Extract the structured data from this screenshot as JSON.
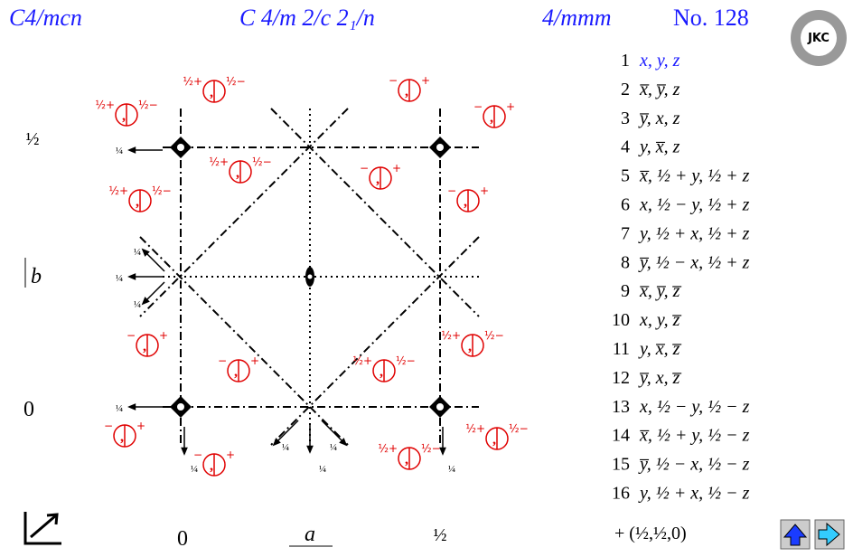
{
  "header": {
    "symbol": "C4/mcn",
    "full_symbol": "C 4/m 2/c 2₁/n",
    "point_group": "4/mmm",
    "number": "No. 128",
    "logo": "JKC"
  },
  "positions": [
    {
      "n": "1",
      "coords": "x, y, z"
    },
    {
      "n": "2",
      "coords": "x̅, y̅, z"
    },
    {
      "n": "3",
      "coords": "y̅, x, z"
    },
    {
      "n": "4",
      "coords": "y, x̅, z"
    },
    {
      "n": "5",
      "coords": "x̅, ½ + y, ½ + z"
    },
    {
      "n": "6",
      "coords": "x, ½ − y, ½ + z"
    },
    {
      "n": "7",
      "coords": "y, ½ + x, ½ + z"
    },
    {
      "n": "8",
      "coords": "y̅, ½ − x, ½ + z"
    },
    {
      "n": "9",
      "coords": "x̅, y̅, z̅"
    },
    {
      "n": "10",
      "coords": "x, y, z̅"
    },
    {
      "n": "11",
      "coords": "y, x̅, z̅"
    },
    {
      "n": "12",
      "coords": "y̅, x, z̅"
    },
    {
      "n": "13",
      "coords": "x, ½ − y, ½ − z"
    },
    {
      "n": "14",
      "coords": "x̅, ½ + y, ½ − z"
    },
    {
      "n": "15",
      "coords": "y̅, ½ − x, ½ − z"
    },
    {
      "n": "16",
      "coords": "y, ½ + x, ½ − z"
    }
  ],
  "centering": "+ (½,½,0)",
  "axes": {
    "y_half": "½",
    "b": "b",
    "y_zero": "0",
    "x_zero": "0",
    "a": "a",
    "x_half": "½"
  },
  "symbols": [
    {
      "left": "½+",
      "right": "½−"
    },
    {
      "left": "−",
      "right": "+"
    },
    {
      "left": "½+",
      "right": "½−"
    },
    {
      "left": "−",
      "right": "+"
    },
    {
      "left": "½+",
      "right": "½−"
    },
    {
      "left": "−",
      "right": "+"
    },
    {
      "left": "½+",
      "right": "½−"
    },
    {
      "left": "−",
      "right": "+"
    },
    {
      "left": "−",
      "right": "+"
    },
    {
      "left": "½+",
      "right": "½−"
    },
    {
      "left": "−",
      "right": "+"
    },
    {
      "left": "½+",
      "right": "½−"
    },
    {
      "left": "−",
      "right": "+"
    },
    {
      "left": "½+",
      "right": "½−"
    },
    {
      "left": "−",
      "right": "+"
    },
    {
      "left": "½+",
      "right": "½−"
    }
  ],
  "quarters": [
    "¼",
    "¼",
    "¼",
    "¼",
    "¼",
    "¼",
    "¼",
    "¼",
    "¼",
    "¼",
    "¼",
    "¼"
  ]
}
